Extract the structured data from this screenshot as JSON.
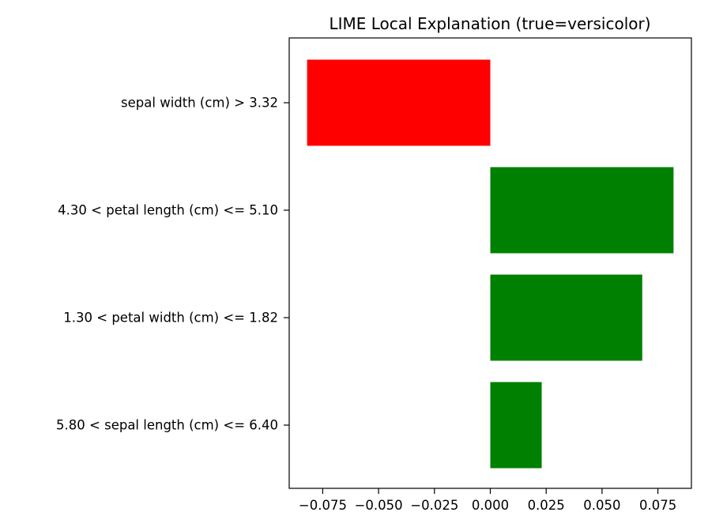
{
  "chart_data": {
    "type": "bar",
    "orientation": "horizontal",
    "title": "LIME Local Explanation (true=versicolor)",
    "xlabel": "",
    "ylabel": "",
    "categories": [
      "sepal width (cm) > 3.32",
      "4.30 < petal length (cm) <= 5.10",
      "1.30 < petal width (cm) <= 1.82",
      "5.80 < sepal length (cm) <= 6.40"
    ],
    "values": [
      -0.082,
      0.082,
      0.068,
      0.023
    ],
    "bar_colors": [
      "#ff0000",
      "#008000",
      "#008000",
      "#008000"
    ],
    "xlim": [
      -0.09,
      0.09
    ],
    "xticks": [
      -0.075,
      -0.05,
      -0.025,
      0.0,
      0.025,
      0.05,
      0.075
    ],
    "xtick_labels": [
      "−0.075",
      "−0.050",
      "−0.025",
      "0.000",
      "0.025",
      "0.050",
      "0.075"
    ],
    "grid": false,
    "legend": "none"
  }
}
